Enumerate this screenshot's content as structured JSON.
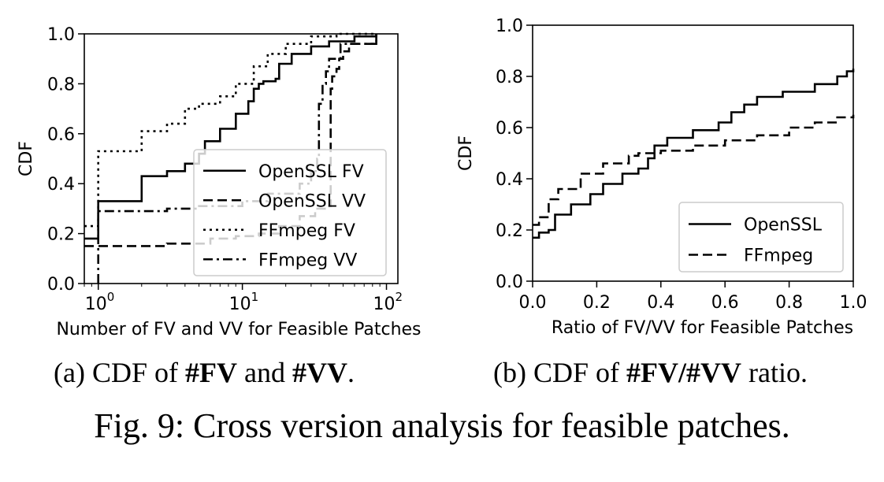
{
  "figure_caption": "Fig. 9: Cross version analysis for feasible patches.",
  "subcaption_a": {
    "prefix": "(a) CDF of ",
    "b1": "#FV",
    "mid": " and ",
    "b2": "#VV",
    "suffix": "."
  },
  "subcaption_b": {
    "prefix": "(b) CDF of ",
    "b1": "#FV/#VV",
    "suffix": " ratio."
  },
  "chart_data": [
    {
      "type": "line",
      "xlabel": "Number of FV and VV for Feasible Patches",
      "ylabel": "CDF",
      "xscale": "log",
      "xlim": [
        0.8,
        120
      ],
      "ylim": [
        0,
        1.0
      ],
      "xticks": [
        1,
        10,
        100
      ],
      "xtick_labels": [
        "10",
        "10",
        "10"
      ],
      "xtick_exponents": [
        "0",
        "1",
        "2"
      ],
      "yticks": [
        "0.0",
        "0.2",
        "0.4",
        "0.6",
        "0.8",
        "1.0"
      ],
      "legend_position": "lower-right",
      "series": [
        {
          "name": "OpenSSL FV",
          "style": "solid",
          "points": [
            [
              0.8,
              0.18
            ],
            [
              1,
              0.18
            ],
            [
              1,
              0.33
            ],
            [
              2,
              0.34
            ],
            [
              2,
              0.43
            ],
            [
              3,
              0.45
            ],
            [
              4,
              0.48
            ],
            [
              5,
              0.52
            ],
            [
              5.5,
              0.57
            ],
            [
              7,
              0.62
            ],
            [
              9,
              0.68
            ],
            [
              11,
              0.73
            ],
            [
              12,
              0.78
            ],
            [
              13,
              0.8
            ],
            [
              14,
              0.8
            ],
            [
              14,
              0.81
            ],
            [
              17,
              0.82
            ],
            [
              18,
              0.88
            ],
            [
              22,
              0.92
            ],
            [
              30,
              0.95
            ],
            [
              40,
              0.97
            ],
            [
              60,
              0.99
            ],
            [
              85,
              1.0
            ]
          ]
        },
        {
          "name": "OpenSSL VV",
          "style": "dashed",
          "points": [
            [
              0.8,
              0.15
            ],
            [
              1,
              0.15
            ],
            [
              3,
              0.16
            ],
            [
              6,
              0.18
            ],
            [
              9,
              0.19
            ],
            [
              13,
              0.2
            ],
            [
              18,
              0.23
            ],
            [
              25,
              0.27
            ],
            [
              32,
              0.3
            ],
            [
              40,
              0.31
            ],
            [
              41,
              0.32
            ],
            [
              41,
              0.78
            ],
            [
              42,
              0.83
            ],
            [
              45,
              0.86
            ],
            [
              47,
              0.9
            ],
            [
              50,
              0.93
            ],
            [
              55,
              0.96
            ],
            [
              85,
              0.97
            ],
            [
              85,
              1.0
            ]
          ]
        },
        {
          "name": "FFmpeg FV",
          "style": "dotted",
          "points": [
            [
              0.8,
              0.23
            ],
            [
              1,
              0.23
            ],
            [
              1,
              0.53
            ],
            [
              2,
              0.53
            ],
            [
              2,
              0.61
            ],
            [
              3,
              0.64
            ],
            [
              4,
              0.7
            ],
            [
              5,
              0.72
            ],
            [
              7,
              0.75
            ],
            [
              9,
              0.8
            ],
            [
              12,
              0.87
            ],
            [
              15,
              0.92
            ],
            [
              20,
              0.96
            ],
            [
              30,
              0.99
            ],
            [
              45,
              1.0
            ],
            [
              85,
              1.0
            ]
          ]
        },
        {
          "name": "FFmpeg VV",
          "style": "dashdot",
          "points": [
            [
              1,
              0.0
            ],
            [
              1,
              0.29
            ],
            [
              3,
              0.3
            ],
            [
              5,
              0.31
            ],
            [
              10,
              0.33
            ],
            [
              15,
              0.36
            ],
            [
              25,
              0.4
            ],
            [
              30,
              0.45
            ],
            [
              33,
              0.5
            ],
            [
              34,
              0.72
            ],
            [
              36,
              0.8
            ],
            [
              38,
              0.85
            ],
            [
              40,
              0.9
            ],
            [
              48,
              0.96
            ],
            [
              85,
              0.98
            ],
            [
              85,
              1.0
            ]
          ]
        }
      ]
    },
    {
      "type": "line",
      "xlabel": "Ratio of FV/VV for Feasible Patches",
      "ylabel": "CDF",
      "xlim": [
        0,
        1.0
      ],
      "ylim": [
        0,
        1.0
      ],
      "xticks": [
        "0.0",
        "0.2",
        "0.4",
        "0.6",
        "0.8",
        "1.0"
      ],
      "yticks": [
        "0.0",
        "0.2",
        "0.4",
        "0.6",
        "0.8",
        "1.0"
      ],
      "legend_position": "lower-right",
      "series": [
        {
          "name": "OpenSSL",
          "style": "solid",
          "points": [
            [
              0,
              0.17
            ],
            [
              0.02,
              0.19
            ],
            [
              0.05,
              0.2
            ],
            [
              0.07,
              0.26
            ],
            [
              0.12,
              0.3
            ],
            [
              0.18,
              0.34
            ],
            [
              0.22,
              0.38
            ],
            [
              0.28,
              0.42
            ],
            [
              0.33,
              0.44
            ],
            [
              0.36,
              0.48
            ],
            [
              0.38,
              0.5
            ],
            [
              0.38,
              0.53
            ],
            [
              0.42,
              0.56
            ],
            [
              0.5,
              0.59
            ],
            [
              0.58,
              0.62
            ],
            [
              0.62,
              0.66
            ],
            [
              0.66,
              0.69
            ],
            [
              0.7,
              0.72
            ],
            [
              0.78,
              0.74
            ],
            [
              0.88,
              0.77
            ],
            [
              0.95,
              0.8
            ],
            [
              0.98,
              0.82
            ],
            [
              1.0,
              0.83
            ]
          ]
        },
        {
          "name": "FFmpeg",
          "style": "dashed",
          "points": [
            [
              0,
              0.22
            ],
            [
              0.02,
              0.25
            ],
            [
              0.05,
              0.32
            ],
            [
              0.08,
              0.36
            ],
            [
              0.15,
              0.42
            ],
            [
              0.22,
              0.46
            ],
            [
              0.3,
              0.49
            ],
            [
              0.33,
              0.5
            ],
            [
              0.4,
              0.51
            ],
            [
              0.5,
              0.53
            ],
            [
              0.6,
              0.55
            ],
            [
              0.7,
              0.57
            ],
            [
              0.8,
              0.6
            ],
            [
              0.88,
              0.62
            ],
            [
              0.95,
              0.64
            ],
            [
              1.0,
              0.65
            ]
          ]
        }
      ]
    }
  ]
}
